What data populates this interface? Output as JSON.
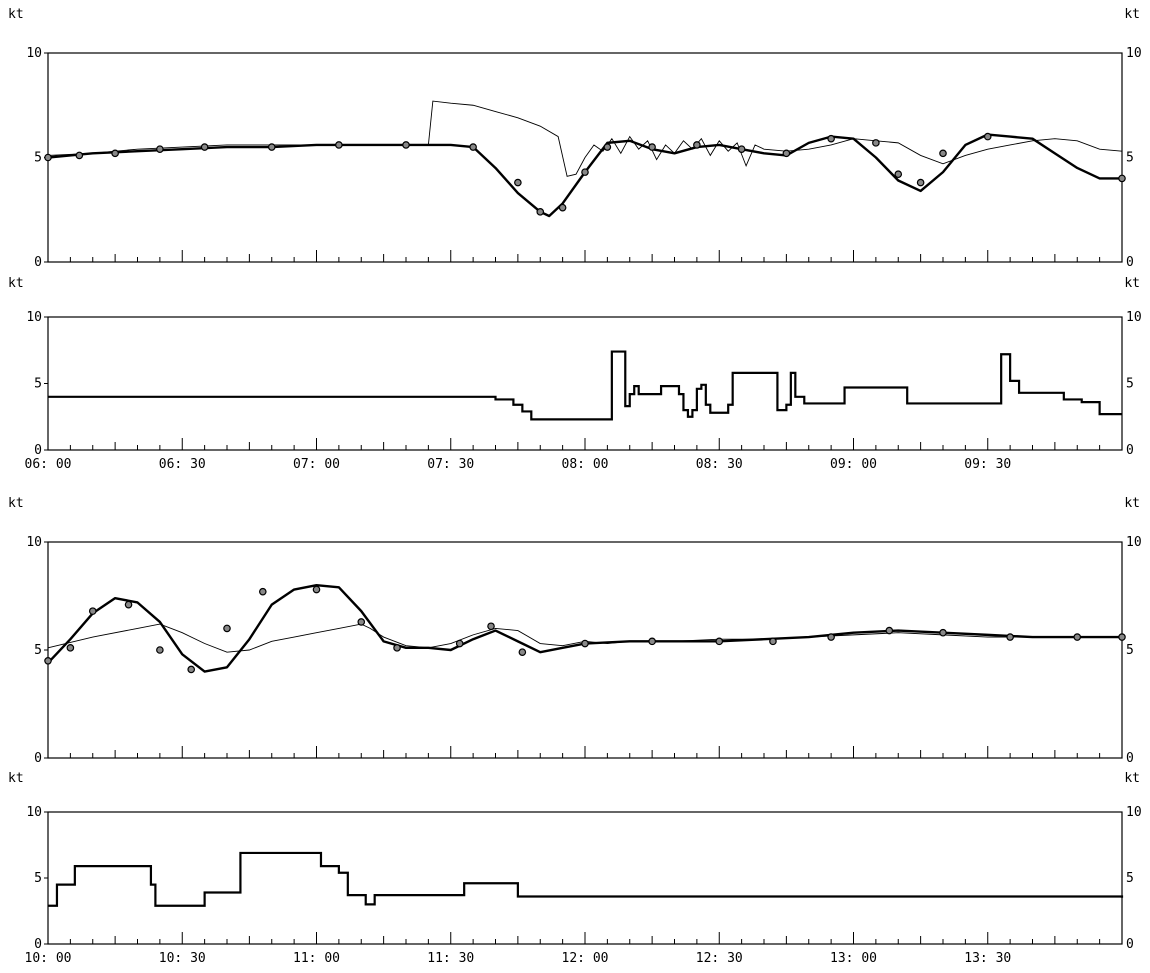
{
  "unit_label": "kt",
  "chart_data": [
    {
      "type": "line",
      "y_ticks": [
        "10",
        "5",
        "0"
      ],
      "ylim": [
        0,
        10
      ],
      "xlim": [
        0,
        240
      ],
      "series": [
        {
          "style": "thin",
          "points": [
            [
              0,
              5.1
            ],
            [
              10,
              5.2
            ],
            [
              20,
              5.4
            ],
            [
              30,
              5.5
            ],
            [
              40,
              5.6
            ],
            [
              50,
              5.6
            ],
            [
              60,
              5.6
            ],
            [
              70,
              5.6
            ],
            [
              80,
              5.6
            ],
            [
              85,
              5.6
            ],
            [
              86,
              7.7
            ],
            [
              90,
              7.6
            ],
            [
              95,
              7.5
            ],
            [
              100,
              7.2
            ],
            [
              105,
              6.9
            ],
            [
              110,
              6.5
            ],
            [
              114,
              6.0
            ],
            [
              116,
              4.1
            ],
            [
              118,
              4.2
            ],
            [
              120,
              5.0
            ],
            [
              122,
              5.6
            ],
            [
              124,
              5.3
            ],
            [
              126,
              5.9
            ],
            [
              128,
              5.2
            ],
            [
              130,
              6.0
            ],
            [
              132,
              5.4
            ],
            [
              134,
              5.8
            ],
            [
              136,
              4.9
            ],
            [
              138,
              5.6
            ],
            [
              140,
              5.2
            ],
            [
              142,
              5.8
            ],
            [
              144,
              5.4
            ],
            [
              146,
              5.9
            ],
            [
              148,
              5.1
            ],
            [
              150,
              5.8
            ],
            [
              152,
              5.3
            ],
            [
              154,
              5.7
            ],
            [
              156,
              4.6
            ],
            [
              158,
              5.6
            ],
            [
              160,
              5.4
            ],
            [
              165,
              5.3
            ],
            [
              170,
              5.4
            ],
            [
              175,
              5.6
            ],
            [
              180,
              5.9
            ],
            [
              185,
              5.8
            ],
            [
              190,
              5.7
            ],
            [
              195,
              5.1
            ],
            [
              200,
              4.7
            ],
            [
              205,
              5.1
            ],
            [
              210,
              5.4
            ],
            [
              215,
              5.6
            ],
            [
              220,
              5.8
            ],
            [
              225,
              5.9
            ],
            [
              230,
              5.8
            ],
            [
              235,
              5.4
            ],
            [
              240,
              5.3
            ]
          ]
        },
        {
          "style": "thick",
          "points": [
            [
              0,
              5.0
            ],
            [
              10,
              5.2
            ],
            [
              20,
              5.3
            ],
            [
              30,
              5.4
            ],
            [
              40,
              5.5
            ],
            [
              50,
              5.5
            ],
            [
              60,
              5.6
            ],
            [
              70,
              5.6
            ],
            [
              80,
              5.6
            ],
            [
              90,
              5.6
            ],
            [
              95,
              5.5
            ],
            [
              100,
              4.5
            ],
            [
              105,
              3.3
            ],
            [
              110,
              2.4
            ],
            [
              112,
              2.2
            ],
            [
              115,
              2.8
            ],
            [
              120,
              4.3
            ],
            [
              125,
              5.7
            ],
            [
              130,
              5.8
            ],
            [
              135,
              5.4
            ],
            [
              140,
              5.2
            ],
            [
              145,
              5.5
            ],
            [
              150,
              5.6
            ],
            [
              155,
              5.4
            ],
            [
              160,
              5.2
            ],
            [
              165,
              5.1
            ],
            [
              170,
              5.7
            ],
            [
              175,
              6.0
            ],
            [
              180,
              5.9
            ],
            [
              185,
              5.0
            ],
            [
              190,
              3.9
            ],
            [
              195,
              3.4
            ],
            [
              200,
              4.3
            ],
            [
              205,
              5.6
            ],
            [
              210,
              6.1
            ],
            [
              215,
              6.0
            ],
            [
              220,
              5.9
            ],
            [
              225,
              5.2
            ],
            [
              230,
              4.5
            ],
            [
              235,
              4.0
            ],
            [
              240,
              4.0
            ]
          ]
        }
      ],
      "markers": [
        [
          0,
          5.0
        ],
        [
          7,
          5.1
        ],
        [
          15,
          5.2
        ],
        [
          25,
          5.4
        ],
        [
          35,
          5.5
        ],
        [
          50,
          5.5
        ],
        [
          65,
          5.6
        ],
        [
          80,
          5.6
        ],
        [
          95,
          5.5
        ],
        [
          105,
          3.8
        ],
        [
          110,
          2.4
        ],
        [
          115,
          2.6
        ],
        [
          120,
          4.3
        ],
        [
          125,
          5.5
        ],
        [
          135,
          5.5
        ],
        [
          145,
          5.6
        ],
        [
          155,
          5.4
        ],
        [
          165,
          5.2
        ],
        [
          175,
          5.9
        ],
        [
          185,
          5.7
        ],
        [
          190,
          4.2
        ],
        [
          195,
          3.8
        ],
        [
          200,
          5.2
        ],
        [
          210,
          6.0
        ],
        [
          240,
          4.0
        ]
      ]
    },
    {
      "type": "line",
      "step": true,
      "y_ticks": [
        "10",
        "5",
        "0"
      ],
      "ylim": [
        0,
        10
      ],
      "xlim": [
        0,
        240
      ],
      "x_tick_labels": [
        "06: 00",
        "06: 30",
        "07: 00",
        "07: 30",
        "08: 00",
        "08: 30",
        "09: 00",
        "09: 30"
      ],
      "series": [
        {
          "style": "step",
          "points": [
            [
              0,
              4.0
            ],
            [
              100,
              3.8
            ],
            [
              104,
              3.4
            ],
            [
              106,
              2.9
            ],
            [
              108,
              2.3
            ],
            [
              125,
              2.3
            ],
            [
              126,
              7.4
            ],
            [
              128,
              7.4
            ],
            [
              129,
              3.3
            ],
            [
              130,
              4.2
            ],
            [
              131,
              4.8
            ],
            [
              132,
              4.2
            ],
            [
              137,
              4.8
            ],
            [
              141,
              4.2
            ],
            [
              142,
              3.0
            ],
            [
              143,
              2.5
            ],
            [
              144,
              3.0
            ],
            [
              145,
              4.6
            ],
            [
              146,
              4.9
            ],
            [
              147,
              3.4
            ],
            [
              148,
              2.8
            ],
            [
              151,
              2.8
            ],
            [
              152,
              3.4
            ],
            [
              153,
              5.8
            ],
            [
              162,
              5.8
            ],
            [
              163,
              3.0
            ],
            [
              165,
              3.4
            ],
            [
              166,
              5.8
            ],
            [
              167,
              4.0
            ],
            [
              169,
              3.5
            ],
            [
              177,
              3.5
            ],
            [
              178,
              4.7
            ],
            [
              191,
              4.7
            ],
            [
              192,
              3.5
            ],
            [
              212,
              3.5
            ],
            [
              213,
              7.2
            ],
            [
              215,
              5.2
            ],
            [
              217,
              4.3
            ],
            [
              225,
              4.3
            ],
            [
              227,
              3.8
            ],
            [
              231,
              3.6
            ],
            [
              235,
              2.7
            ],
            [
              240,
              2.7
            ]
          ]
        }
      ]
    },
    {
      "type": "line",
      "y_ticks": [
        "10",
        "5",
        "0"
      ],
      "ylim": [
        0,
        10
      ],
      "xlim": [
        0,
        240
      ],
      "series": [
        {
          "style": "thin",
          "points": [
            [
              0,
              5.1
            ],
            [
              10,
              5.6
            ],
            [
              20,
              6.0
            ],
            [
              25,
              6.2
            ],
            [
              30,
              5.8
            ],
            [
              35,
              5.3
            ],
            [
              40,
              4.9
            ],
            [
              45,
              5.0
            ],
            [
              50,
              5.4
            ],
            [
              55,
              5.6
            ],
            [
              60,
              5.8
            ],
            [
              65,
              6.0
            ],
            [
              70,
              6.2
            ],
            [
              72,
              6.0
            ],
            [
              75,
              5.6
            ],
            [
              80,
              5.2
            ],
            [
              85,
              5.1
            ],
            [
              90,
              5.3
            ],
            [
              95,
              5.7
            ],
            [
              100,
              6.0
            ],
            [
              105,
              5.9
            ],
            [
              110,
              5.3
            ],
            [
              115,
              5.2
            ],
            [
              120,
              5.4
            ],
            [
              125,
              5.3
            ],
            [
              130,
              5.4
            ],
            [
              140,
              5.4
            ],
            [
              150,
              5.5
            ],
            [
              160,
              5.5
            ],
            [
              170,
              5.6
            ],
            [
              180,
              5.7
            ],
            [
              190,
              5.8
            ],
            [
              200,
              5.7
            ],
            [
              210,
              5.6
            ],
            [
              220,
              5.6
            ],
            [
              230,
              5.6
            ],
            [
              240,
              5.6
            ]
          ]
        },
        {
          "style": "thick",
          "points": [
            [
              0,
              4.4
            ],
            [
              5,
              5.5
            ],
            [
              10,
              6.7
            ],
            [
              15,
              7.4
            ],
            [
              20,
              7.2
            ],
            [
              25,
              6.3
            ],
            [
              30,
              4.8
            ],
            [
              35,
              4.0
            ],
            [
              40,
              4.2
            ],
            [
              45,
              5.5
            ],
            [
              50,
              7.1
            ],
            [
              55,
              7.8
            ],
            [
              60,
              8.0
            ],
            [
              65,
              7.9
            ],
            [
              70,
              6.8
            ],
            [
              75,
              5.4
            ],
            [
              80,
              5.1
            ],
            [
              85,
              5.1
            ],
            [
              90,
              5.0
            ],
            [
              95,
              5.5
            ],
            [
              100,
              5.9
            ],
            [
              105,
              5.4
            ],
            [
              110,
              4.9
            ],
            [
              115,
              5.1
            ],
            [
              120,
              5.3
            ],
            [
              130,
              5.4
            ],
            [
              140,
              5.4
            ],
            [
              150,
              5.4
            ],
            [
              160,
              5.5
            ],
            [
              170,
              5.6
            ],
            [
              180,
              5.8
            ],
            [
              190,
              5.9
            ],
            [
              200,
              5.8
            ],
            [
              210,
              5.7
            ],
            [
              220,
              5.6
            ],
            [
              230,
              5.6
            ],
            [
              240,
              5.6
            ]
          ]
        }
      ],
      "markers": [
        [
          0,
          4.5
        ],
        [
          5,
          5.1
        ],
        [
          10,
          6.8
        ],
        [
          18,
          7.1
        ],
        [
          25,
          5.0
        ],
        [
          32,
          4.1
        ],
        [
          40,
          6.0
        ],
        [
          48,
          7.7
        ],
        [
          60,
          7.8
        ],
        [
          70,
          6.3
        ],
        [
          78,
          5.1
        ],
        [
          92,
          5.3
        ],
        [
          99,
          6.1
        ],
        [
          106,
          4.9
        ],
        [
          120,
          5.3
        ],
        [
          135,
          5.4
        ],
        [
          150,
          5.4
        ],
        [
          162,
          5.4
        ],
        [
          175,
          5.6
        ],
        [
          188,
          5.9
        ],
        [
          200,
          5.8
        ],
        [
          215,
          5.6
        ],
        [
          230,
          5.6
        ],
        [
          240,
          5.6
        ]
      ]
    },
    {
      "type": "line",
      "step": true,
      "y_ticks": [
        "10",
        "5",
        "0"
      ],
      "ylim": [
        0,
        10
      ],
      "xlim": [
        0,
        240
      ],
      "x_tick_labels": [
        "10: 00",
        "10: 30",
        "11: 00",
        "11: 30",
        "12: 00",
        "12: 30",
        "13: 00",
        "13: 30"
      ],
      "series": [
        {
          "style": "step",
          "points": [
            [
              0,
              2.9
            ],
            [
              2,
              4.5
            ],
            [
              6,
              5.9
            ],
            [
              22,
              5.9
            ],
            [
              23,
              4.5
            ],
            [
              24,
              2.9
            ],
            [
              34,
              2.9
            ],
            [
              35,
              3.9
            ],
            [
              42,
              3.9
            ],
            [
              43,
              6.9
            ],
            [
              60,
              6.9
            ],
            [
              61,
              5.9
            ],
            [
              65,
              5.4
            ],
            [
              67,
              3.7
            ],
            [
              71,
              3.0
            ],
            [
              73,
              3.7
            ],
            [
              92,
              3.7
            ],
            [
              93,
              4.6
            ],
            [
              104,
              4.6
            ],
            [
              105,
              3.6
            ],
            [
              240,
              3.5
            ]
          ]
        }
      ]
    }
  ]
}
